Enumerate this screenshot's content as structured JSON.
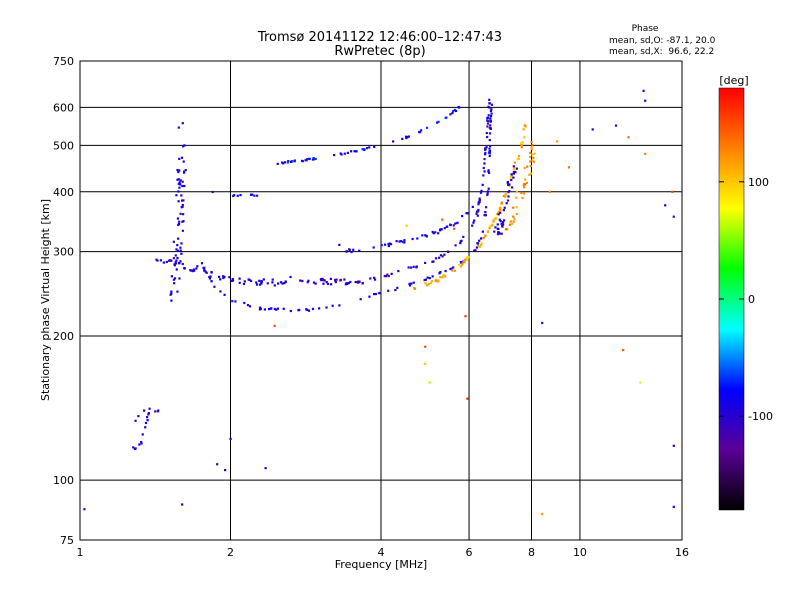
{
  "chart_data": {
    "type": "scatter",
    "title": "Tromsø 20141122 12:46:00–12:47:43",
    "subtitle": "RwPretec (8p)",
    "xlabel": "Frequency [MHz]",
    "ylabel": "Stationary phase Virtual Height [km]",
    "x_scale": "log",
    "y_scale": "log",
    "xlim": [
      1,
      16
    ],
    "ylim": [
      75,
      750
    ],
    "grid": true,
    "x_ticks": [
      {
        "value": 1,
        "label": "1"
      },
      {
        "value": 2,
        "label": "2"
      },
      {
        "value": 4,
        "label": "4"
      },
      {
        "value": 6,
        "label": "6"
      },
      {
        "value": 8,
        "label": "8"
      },
      {
        "value": 10,
        "label": "10"
      },
      {
        "value": 16,
        "label": "16"
      }
    ],
    "y_ticks": [
      {
        "value": 75,
        "label": "75"
      },
      {
        "value": 100,
        "label": "100"
      },
      {
        "value": 200,
        "label": "200"
      },
      {
        "value": 300,
        "label": "300"
      },
      {
        "value": 400,
        "label": "400"
      },
      {
        "value": 500,
        "label": "500"
      },
      {
        "value": 600,
        "label": "600"
      },
      {
        "value": 750,
        "label": "750"
      }
    ],
    "phase_stats": {
      "heading": "Phase",
      "line_o": "mean, sd,O: -87.1, 20.0",
      "line_x": "mean, sd,X:  96.6, 22.2"
    },
    "colorbar": {
      "label": "[deg]",
      "range": [
        -180,
        180
      ],
      "ticks": [
        {
          "value": 100,
          "label": "100"
        },
        {
          "value": 0,
          "label": "0"
        },
        {
          "value": -100,
          "label": "-100"
        }
      ],
      "colors": [
        "#000000",
        "#5a0096",
        "#0000ff",
        "#00ffff",
        "#00ff00",
        "#ffff00",
        "#ff8000",
        "#ff0000"
      ]
    },
    "traces": [
      {
        "name": "",
        "phase": -95,
        "points": [
          [
            1.52,
            230
          ],
          [
            1.55,
            260
          ],
          [
            1.57,
            300
          ],
          [
            1.58,
            360
          ],
          [
            1.59,
            420
          ],
          [
            1.6,
            470
          ],
          [
            1.6,
            520
          ],
          [
            1.61,
            560
          ]
        ],
        "spread": 0.07,
        "density": 70
      },
      {
        "name": "",
        "phase": -95,
        "points": [
          [
            1.42,
            290
          ],
          [
            1.5,
            285
          ],
          [
            1.6,
            280
          ],
          [
            1.75,
            275
          ],
          [
            1.85,
            268
          ],
          [
            2.0,
            262
          ],
          [
            2.2,
            260
          ],
          [
            2.6,
            258
          ]
        ],
        "spread": 0.03,
        "density": 60
      },
      {
        "name": "",
        "phase": -90,
        "points": [
          [
            1.75,
            285
          ],
          [
            1.85,
            255
          ],
          [
            2.0,
            238
          ],
          [
            2.3,
            228
          ],
          [
            2.8,
            226
          ],
          [
            3.3,
            232
          ],
          [
            3.8,
            242
          ],
          [
            4.4,
            253
          ],
          [
            5.0,
            265
          ],
          [
            5.6,
            278
          ],
          [
            6.1,
            295
          ],
          [
            6.4,
            330
          ],
          [
            6.55,
            400
          ],
          [
            6.6,
            500
          ],
          [
            6.65,
            620
          ]
        ],
        "spread": 0.01,
        "density": 110
      },
      {
        "name": "",
        "phase": -100,
        "points": [
          [
            2.6,
            265
          ],
          [
            3.0,
            258
          ],
          [
            3.5,
            258
          ],
          [
            4.0,
            265
          ],
          [
            4.6,
            278
          ],
          [
            5.2,
            290
          ],
          [
            5.7,
            310
          ],
          [
            6.2,
            350
          ],
          [
            6.4,
            420
          ],
          [
            6.5,
            520
          ],
          [
            6.6,
            640
          ]
        ],
        "spread": 0.012,
        "density": 90
      },
      {
        "name": "",
        "phase": -90,
        "points": [
          [
            3.2,
            300
          ],
          [
            3.6,
            302
          ],
          [
            4.0,
            308
          ],
          [
            4.6,
            318
          ],
          [
            5.2,
            330
          ],
          [
            5.7,
            345
          ],
          [
            6.1,
            372
          ]
        ],
        "spread": 0.015,
        "density": 45
      },
      {
        "name": "",
        "phase": -85,
        "points": [
          [
            2.5,
            460
          ],
          [
            3.0,
            470
          ],
          [
            3.5,
            485
          ],
          [
            4.0,
            500
          ],
          [
            4.5,
            520
          ],
          [
            5.0,
            545
          ],
          [
            5.5,
            580
          ],
          [
            5.9,
            615
          ]
        ],
        "spread": 0.008,
        "density": 50
      },
      {
        "name": "",
        "phase": -75,
        "points": [
          [
            2.45,
            455
          ],
          [
            2.6,
            462
          ],
          [
            2.8,
            465
          ]
        ],
        "spread": 0.008,
        "density": 10
      },
      {
        "name": "",
        "phase": 110,
        "points": [
          [
            4.6,
            250
          ],
          [
            5.2,
            262
          ],
          [
            5.8,
            282
          ],
          [
            6.3,
            310
          ],
          [
            6.8,
            355
          ],
          [
            7.2,
            410
          ],
          [
            7.5,
            470
          ],
          [
            7.7,
            520
          ],
          [
            7.8,
            560
          ]
        ],
        "spread": 0.015,
        "density": 90
      },
      {
        "name": "",
        "phase": 120,
        "points": [
          [
            7.2,
            330
          ],
          [
            7.5,
            380
          ],
          [
            7.8,
            430
          ],
          [
            8.0,
            480
          ],
          [
            8.1,
            520
          ]
        ],
        "spread": 0.05,
        "density": 40
      },
      {
        "name": "",
        "phase": -100,
        "points": [
          [
            6.8,
            320
          ],
          [
            7.0,
            360
          ],
          [
            7.2,
            400
          ],
          [
            7.4,
            450
          ]
        ],
        "spread": 0.05,
        "density": 40
      },
      {
        "name": "",
        "phase": -90,
        "points": [
          [
            1.35,
            140
          ],
          [
            1.3,
            135
          ],
          [
            1.28,
            118
          ],
          [
            1.3,
            112
          ],
          [
            1.38,
            140
          ],
          [
            1.45,
            138
          ]
        ],
        "spread": 0.02,
        "density": 20
      },
      {
        "name": "",
        "phase": -85,
        "points": [
          [
            1.8,
            400
          ],
          [
            1.9,
            395
          ],
          [
            2.0,
            392
          ],
          [
            2.3,
            395
          ]
        ],
        "spread": 0.01,
        "density": 10
      },
      {
        "name": "",
        "phase": -110,
        "points": [
          [
            3.0,
            262
          ],
          [
            3.3,
            262
          ],
          [
            3.7,
            258
          ]
        ],
        "spread": 0.01,
        "density": 20
      }
    ],
    "scattered": [
      {
        "x": 1.02,
        "y": 87,
        "phase": -100
      },
      {
        "x": 1.6,
        "y": 89,
        "phase": -100
      },
      {
        "x": 1.88,
        "y": 108,
        "phase": -100
      },
      {
        "x": 1.95,
        "y": 105,
        "phase": -95
      },
      {
        "x": 2.35,
        "y": 106,
        "phase": -90
      },
      {
        "x": 2.0,
        "y": 122,
        "phase": -90
      },
      {
        "x": 2.45,
        "y": 210,
        "phase": 150
      },
      {
        "x": 4.9,
        "y": 190,
        "phase": 150
      },
      {
        "x": 4.9,
        "y": 175,
        "phase": 100
      },
      {
        "x": 5.0,
        "y": 160,
        "phase": 60
      },
      {
        "x": 5.9,
        "y": 220,
        "phase": 160
      },
      {
        "x": 5.95,
        "y": 148,
        "phase": 160
      },
      {
        "x": 8.4,
        "y": 213,
        "phase": -110
      },
      {
        "x": 8.4,
        "y": 85,
        "phase": 120
      },
      {
        "x": 12.2,
        "y": 187,
        "phase": 150
      },
      {
        "x": 13.2,
        "y": 160,
        "phase": 70
      },
      {
        "x": 13.5,
        "y": 480,
        "phase": 130
      },
      {
        "x": 14.8,
        "y": 375,
        "phase": -100
      },
      {
        "x": 15.4,
        "y": 355,
        "phase": -110
      },
      {
        "x": 15.3,
        "y": 400,
        "phase": 150
      },
      {
        "x": 15.4,
        "y": 118,
        "phase": -95
      },
      {
        "x": 15.4,
        "y": 88,
        "phase": -90
      },
      {
        "x": 11.8,
        "y": 550,
        "phase": -100
      },
      {
        "x": 10.6,
        "y": 540,
        "phase": -95
      },
      {
        "x": 13.4,
        "y": 650,
        "phase": -100
      },
      {
        "x": 13.5,
        "y": 620,
        "phase": -95
      },
      {
        "x": 12.5,
        "y": 520,
        "phase": 140
      },
      {
        "x": 9.5,
        "y": 450,
        "phase": 140
      },
      {
        "x": 9.0,
        "y": 510,
        "phase": 120
      },
      {
        "x": 8.7,
        "y": 400,
        "phase": 130
      },
      {
        "x": 4.5,
        "y": 340,
        "phase": 100
      },
      {
        "x": 5.3,
        "y": 350,
        "phase": 140
      },
      {
        "x": 5.6,
        "y": 335,
        "phase": 150
      },
      {
        "x": 3.3,
        "y": 310,
        "phase": -100
      }
    ]
  }
}
